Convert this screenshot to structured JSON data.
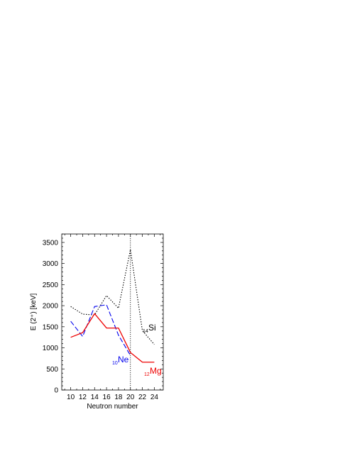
{
  "chart_data": {
    "type": "line",
    "xlabel": "Neutron number",
    "ylabel": "E (2⁺) [keV]",
    "xlim": [
      8.5,
      25.5
    ],
    "ylim": [
      0,
      3700
    ],
    "xticks": [
      10,
      12,
      14,
      16,
      18,
      20,
      22,
      24
    ],
    "yticks": [
      0,
      500,
      1000,
      1500,
      2000,
      2500,
      3000,
      3500
    ],
    "vline": 20,
    "series": [
      {
        "name": "Si",
        "subscript": "14",
        "color": "#000000",
        "style": "dotted",
        "x": [
          10,
          12,
          14,
          16,
          18,
          20,
          22,
          24
        ],
        "y": [
          1980,
          1800,
          1780,
          2240,
          1940,
          3330,
          1410,
          1080
        ]
      },
      {
        "name": "Ne",
        "subscript": "10",
        "color": "#0000ee",
        "style": "dashed",
        "x": [
          10,
          12,
          14,
          16,
          18,
          20
        ],
        "y": [
          1630,
          1270,
          1980,
          2020,
          1300,
          820
        ]
      },
      {
        "name": "Mg",
        "subscript": "12",
        "color": "#ee0000",
        "style": "solid",
        "x": [
          10,
          12,
          14,
          16,
          18,
          20,
          22,
          24
        ],
        "y": [
          1250,
          1360,
          1810,
          1470,
          1470,
          890,
          660,
          660
        ]
      }
    ]
  }
}
